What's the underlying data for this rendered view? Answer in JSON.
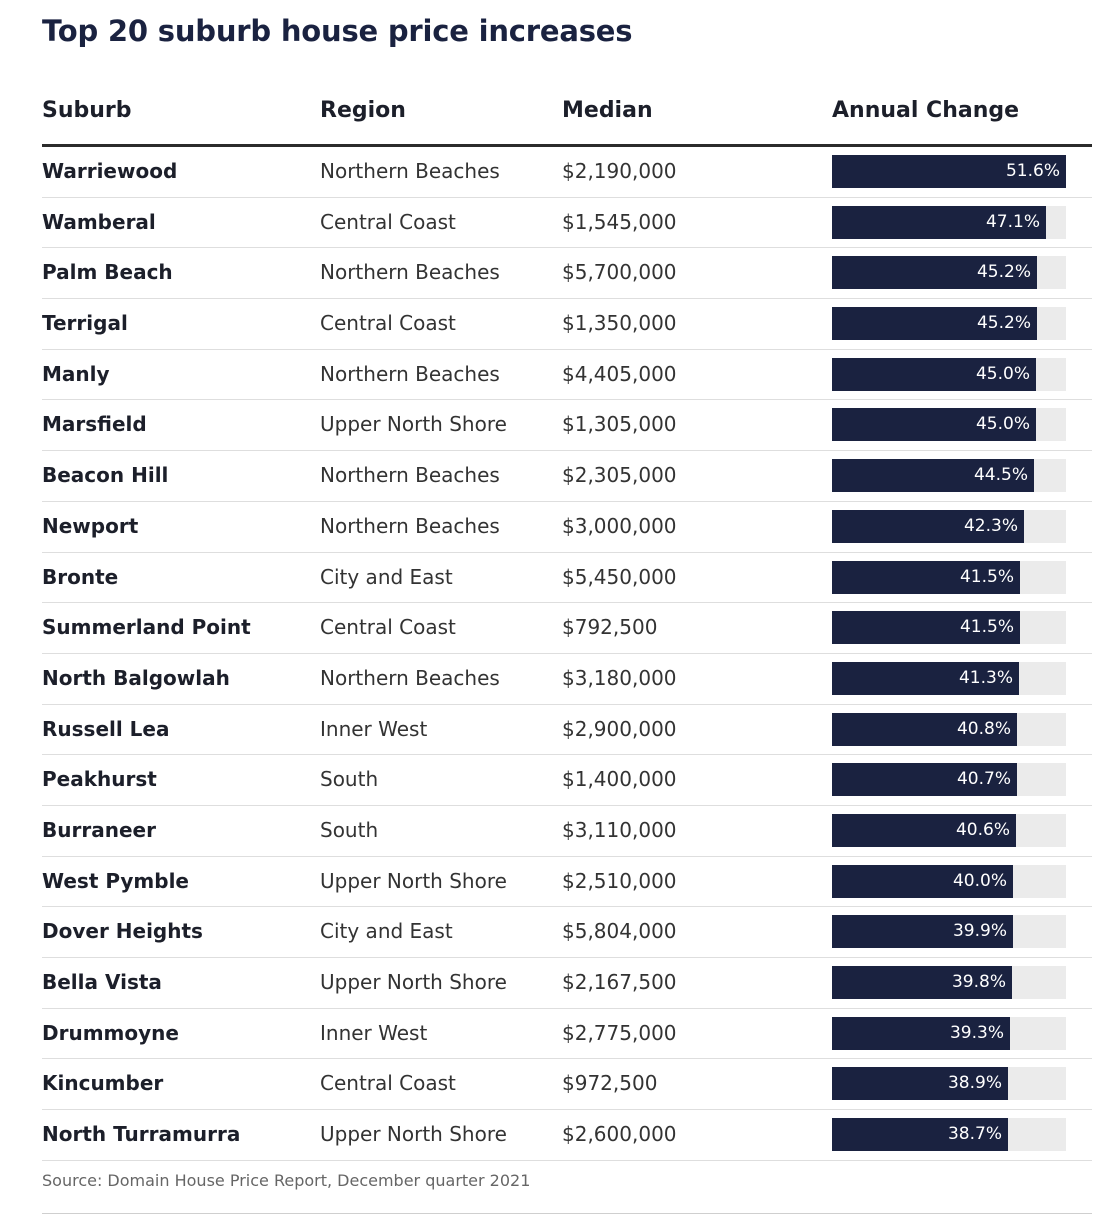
{
  "title": "Top 20 suburb house price increases",
  "columns": {
    "suburb": "Suburb",
    "region": "Region",
    "median": "Median",
    "change": "Annual Change"
  },
  "colors": {
    "bar": "#1a2240",
    "track": "#ebebeb"
  },
  "scale_max": 51.6,
  "rows": [
    {
      "suburb": "Warriewood",
      "region": "Northern Beaches",
      "median": "$2,190,000",
      "change": "51.6%"
    },
    {
      "suburb": "Wamberal",
      "region": "Central Coast",
      "median": "$1,545,000",
      "change": "47.1%"
    },
    {
      "suburb": "Palm Beach",
      "region": "Northern Beaches",
      "median": "$5,700,000",
      "change": "45.2%"
    },
    {
      "suburb": "Terrigal",
      "region": "Central Coast",
      "median": "$1,350,000",
      "change": "45.2%"
    },
    {
      "suburb": "Manly",
      "region": "Northern Beaches",
      "median": "$4,405,000",
      "change": "45.0%"
    },
    {
      "suburb": "Marsfield",
      "region": "Upper North Shore",
      "median": "$1,305,000",
      "change": "45.0%"
    },
    {
      "suburb": "Beacon Hill",
      "region": "Northern Beaches",
      "median": "$2,305,000",
      "change": "44.5%"
    },
    {
      "suburb": "Newport",
      "region": "Northern Beaches",
      "median": "$3,000,000",
      "change": "42.3%"
    },
    {
      "suburb": "Bronte",
      "region": "City and East",
      "median": "$5,450,000",
      "change": "41.5%"
    },
    {
      "suburb": "Summerland Point",
      "region": "Central Coast",
      "median": "$792,500",
      "change": "41.5%"
    },
    {
      "suburb": "North Balgowlah",
      "region": "Northern Beaches",
      "median": "$3,180,000",
      "change": "41.3%"
    },
    {
      "suburb": "Russell Lea",
      "region": "Inner West",
      "median": "$2,900,000",
      "change": "40.8%"
    },
    {
      "suburb": "Peakhurst",
      "region": "South",
      "median": "$1,400,000",
      "change": "40.7%"
    },
    {
      "suburb": "Burraneer",
      "region": "South",
      "median": "$3,110,000",
      "change": "40.6%"
    },
    {
      "suburb": "West Pymble",
      "region": "Upper North Shore",
      "median": "$2,510,000",
      "change": "40.0%"
    },
    {
      "suburb": "Dover Heights",
      "region": "City and East",
      "median": "$5,804,000",
      "change": "39.9%"
    },
    {
      "suburb": "Bella Vista",
      "region": "Upper North Shore",
      "median": "$2,167,500",
      "change": "39.8%"
    },
    {
      "suburb": "Drummoyne",
      "region": "Inner West",
      "median": "$2,775,000",
      "change": "39.3%"
    },
    {
      "suburb": "Kincumber",
      "region": "Central Coast",
      "median": "$972,500",
      "change": "38.9%"
    },
    {
      "suburb": "North Turramurra",
      "region": "Upper North Shore",
      "median": "$2,600,000",
      "change": "38.7%"
    }
  ],
  "chart_data": {
    "type": "table",
    "title": "Top 20 suburb house price increases",
    "columns": [
      "Suburb",
      "Region",
      "Median",
      "Annual Change"
    ],
    "categories": [
      "Warriewood",
      "Wamberal",
      "Palm Beach",
      "Terrigal",
      "Manly",
      "Marsfield",
      "Beacon Hill",
      "Newport",
      "Bronte",
      "Summerland Point",
      "North Balgowlah",
      "Russell Lea",
      "Peakhurst",
      "Burraneer",
      "West Pymble",
      "Dover Heights",
      "Bella Vista",
      "Drummoyne",
      "Kincumber",
      "North Turramurra"
    ],
    "values": [
      51.6,
      47.1,
      45.2,
      45.2,
      45.0,
      45.0,
      44.5,
      42.3,
      41.5,
      41.5,
      41.3,
      40.8,
      40.7,
      40.6,
      40.0,
      39.9,
      39.8,
      39.3,
      38.9,
      38.7
    ]
  },
  "source": "Source: Domain House Price Report, December quarter 2021"
}
